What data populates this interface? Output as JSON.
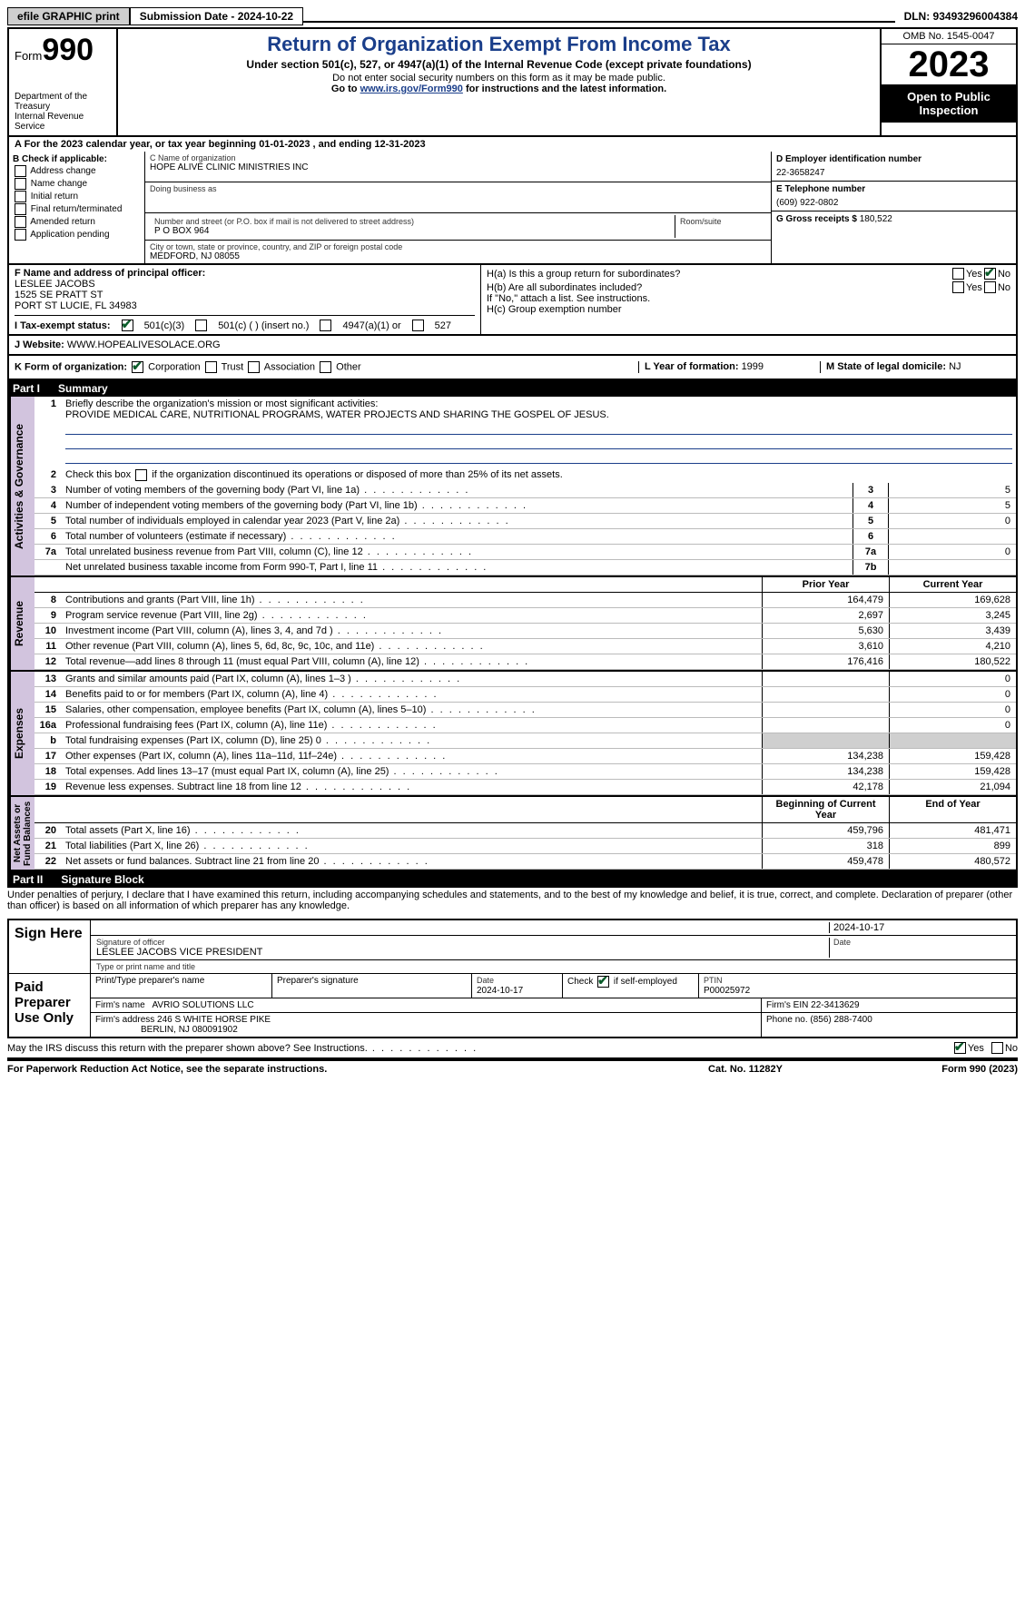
{
  "topbar": {
    "efile_btn": "efile GRAPHIC print",
    "sub_date_label": "Submission Date - 2024-10-22",
    "dln_label": "DLN: 93493296004384"
  },
  "header": {
    "form_word": "Form",
    "form_num": "990",
    "dept": "Department of the Treasury\nInternal Revenue Service",
    "title": "Return of Organization Exempt From Income Tax",
    "sub1": "Under section 501(c), 527, or 4947(a)(1) of the Internal Revenue Code (except private foundations)",
    "sub2": "Do not enter social security numbers on this form as it may be made public.",
    "sub3_pre": "Go to ",
    "sub3_link": "www.irs.gov/Form990",
    "sub3_post": " for instructions and the latest information.",
    "omb": "OMB No. 1545-0047",
    "year": "2023",
    "open": "Open to Public Inspection"
  },
  "lineA": "A For the 2023 calendar year, or tax year beginning 01-01-2023    , and ending 12-31-2023",
  "boxB": {
    "hdr": "B Check if applicable:",
    "items": [
      "Address change",
      "Name change",
      "Initial return",
      "Final return/terminated",
      "Amended return",
      "Application pending"
    ]
  },
  "boxC": {
    "name_lbl": "C Name of organization",
    "name": "HOPE ALIVE CLINIC MINISTRIES INC",
    "dba_lbl": "Doing business as",
    "street_lbl": "Number and street (or P.O. box if mail is not delivered to street address)",
    "room_lbl": "Room/suite",
    "street": "P O BOX 964",
    "city_lbl": "City or town, state or province, country, and ZIP or foreign postal code",
    "city": "MEDFORD, NJ  08055"
  },
  "boxD": {
    "ein_lbl": "D Employer identification number",
    "ein": "22-3658247",
    "tel_lbl": "E Telephone number",
    "tel": "(609) 922-0802",
    "gross_lbl": "G Gross receipts $ ",
    "gross": "180,522"
  },
  "boxF": {
    "lbl": "F  Name and address of principal officer:",
    "name": "LESLEE JACOBS",
    "addr1": "1525 SE PRATT ST",
    "addr2": "PORT ST LUCIE, FL  34983"
  },
  "boxH": {
    "a": "H(a)  Is this a group return for subordinates?",
    "b": "H(b)  Are all subordinates included?",
    "b_note": "If \"No,\" attach a list. See instructions.",
    "c": "H(c)  Group exemption number  "
  },
  "rowI": {
    "lbl": "I    Tax-exempt status:",
    "opts": [
      "501(c)(3)",
      "501(c) (  ) (insert no.)",
      "4947(a)(1) or",
      "527"
    ]
  },
  "rowJ": {
    "lbl": "J    Website:  ",
    "val": "WWW.HOPEALIVESOLACE.ORG"
  },
  "rowK": {
    "lbl": "K Form of organization:",
    "opts": [
      "Corporation",
      "Trust",
      "Association",
      "Other"
    ],
    "year_lbl": "L Year of formation: ",
    "year": "1999",
    "state_lbl": "M State of legal domicile: ",
    "state": "NJ"
  },
  "part1": {
    "bar": "Part I",
    "title": "Summary",
    "q1_lbl": "Briefly describe the organization's mission or most significant activities:",
    "q1_val": "PROVIDE MEDICAL CARE, NUTRITIONAL PROGRAMS, WATER PROJECTS AND SHARING THE GOSPEL OF JESUS.",
    "q2": "Check this box       if the organization discontinued its operations or disposed of more than 25% of its net assets.",
    "lines_gov": [
      {
        "n": "3",
        "t": "Number of voting members of the governing body (Part VI, line 1a)",
        "box": "3",
        "v": "5"
      },
      {
        "n": "4",
        "t": "Number of independent voting members of the governing body (Part VI, line 1b)",
        "box": "4",
        "v": "5"
      },
      {
        "n": "5",
        "t": "Total number of individuals employed in calendar year 2023 (Part V, line 2a)",
        "box": "5",
        "v": "0"
      },
      {
        "n": "6",
        "t": "Total number of volunteers (estimate if necessary)",
        "box": "6",
        "v": ""
      },
      {
        "n": "7a",
        "t": "Total unrelated business revenue from Part VIII, column (C), line 12",
        "box": "7a",
        "v": "0"
      },
      {
        "n": "",
        "t": "Net unrelated business taxable income from Form 990-T, Part I, line 11",
        "box": "7b",
        "v": ""
      }
    ],
    "col_prior": "Prior Year",
    "col_current": "Current Year",
    "rev": [
      {
        "n": "8",
        "t": "Contributions and grants (Part VIII, line 1h)",
        "p": "164,479",
        "c": "169,628"
      },
      {
        "n": "9",
        "t": "Program service revenue (Part VIII, line 2g)",
        "p": "2,697",
        "c": "3,245"
      },
      {
        "n": "10",
        "t": "Investment income (Part VIII, column (A), lines 3, 4, and 7d )",
        "p": "5,630",
        "c": "3,439"
      },
      {
        "n": "11",
        "t": "Other revenue (Part VIII, column (A), lines 5, 6d, 8c, 9c, 10c, and 11e)",
        "p": "3,610",
        "c": "4,210"
      },
      {
        "n": "12",
        "t": "Total revenue—add lines 8 through 11 (must equal Part VIII, column (A), line 12)",
        "p": "176,416",
        "c": "180,522"
      }
    ],
    "exp": [
      {
        "n": "13",
        "t": "Grants and similar amounts paid (Part IX, column (A), lines 1–3 )",
        "p": "",
        "c": "0"
      },
      {
        "n": "14",
        "t": "Benefits paid to or for members (Part IX, column (A), line 4)",
        "p": "",
        "c": "0"
      },
      {
        "n": "15",
        "t": "Salaries, other compensation, employee benefits (Part IX, column (A), lines 5–10)",
        "p": "",
        "c": "0"
      },
      {
        "n": "16a",
        "t": "Professional fundraising fees (Part IX, column (A), line 11e)",
        "p": "",
        "c": "0"
      },
      {
        "n": "b",
        "t": "Total fundraising expenses (Part IX, column (D), line 25) 0",
        "p": "__shade__",
        "c": "__shade__"
      },
      {
        "n": "17",
        "t": "Other expenses (Part IX, column (A), lines 11a–11d, 11f–24e)",
        "p": "134,238",
        "c": "159,428"
      },
      {
        "n": "18",
        "t": "Total expenses. Add lines 13–17 (must equal Part IX, column (A), line 25)",
        "p": "134,238",
        "c": "159,428"
      },
      {
        "n": "19",
        "t": "Revenue less expenses. Subtract line 18 from line 12",
        "p": "42,178",
        "c": "21,094"
      }
    ],
    "col_begin": "Beginning of Current Year",
    "col_end": "End of Year",
    "net": [
      {
        "n": "20",
        "t": "Total assets (Part X, line 16)",
        "p": "459,796",
        "c": "481,471"
      },
      {
        "n": "21",
        "t": "Total liabilities (Part X, line 26)",
        "p": "318",
        "c": "899"
      },
      {
        "n": "22",
        "t": "Net assets or fund balances. Subtract line 21 from line 20",
        "p": "459,478",
        "c": "480,572"
      }
    ]
  },
  "vlabels": {
    "gov": "Activities & Governance",
    "rev": "Revenue",
    "exp": "Expenses",
    "net": "Net Assets or\nFund Balances"
  },
  "part2": {
    "bar": "Part II",
    "title": "Signature Block",
    "decl": "Under penalties of perjury, I declare that I have examined this return, including accompanying schedules and statements, and to the best of my knowledge and belief, it is true, correct, and complete. Declaration of preparer (other than officer) is based on all information of which preparer has any knowledge."
  },
  "sign": {
    "lbl": "Sign Here",
    "sig_lbl": "Signature of officer",
    "sig_name": "LESLEE JACOBS  VICE PRESIDENT",
    "sig_type_lbl": "Type or print name and title",
    "date_lbl": "Date",
    "date": "2024-10-17"
  },
  "prep": {
    "lbl": "Paid Preparer Use Only",
    "name_lbl": "Print/Type preparer's name",
    "sig_lbl": "Preparer's signature",
    "date_lbl": "Date",
    "date": "2024-10-17",
    "check_lbl": "Check         if self-employed",
    "ptin_lbl": "PTIN",
    "ptin": "P00025972",
    "firm_name_lbl": "Firm's name  ",
    "firm_name": "AVRIO SOLUTIONS LLC",
    "firm_ein_lbl": "Firm's EIN  ",
    "firm_ein": "22-3413629",
    "firm_addr_lbl": "Firm's address ",
    "firm_addr1": "246 S WHITE HORSE PIKE",
    "firm_addr2": "BERLIN, NJ  080091902",
    "phone_lbl": "Phone no. ",
    "phone": "(856) 288-7400"
  },
  "discuss": "May the IRS discuss this return with the preparer shown above? See Instructions.",
  "footer": {
    "left": "For Paperwork Reduction Act Notice, see the separate instructions.",
    "mid": "Cat. No. 11282Y",
    "right": "Form 990 (2023)"
  }
}
